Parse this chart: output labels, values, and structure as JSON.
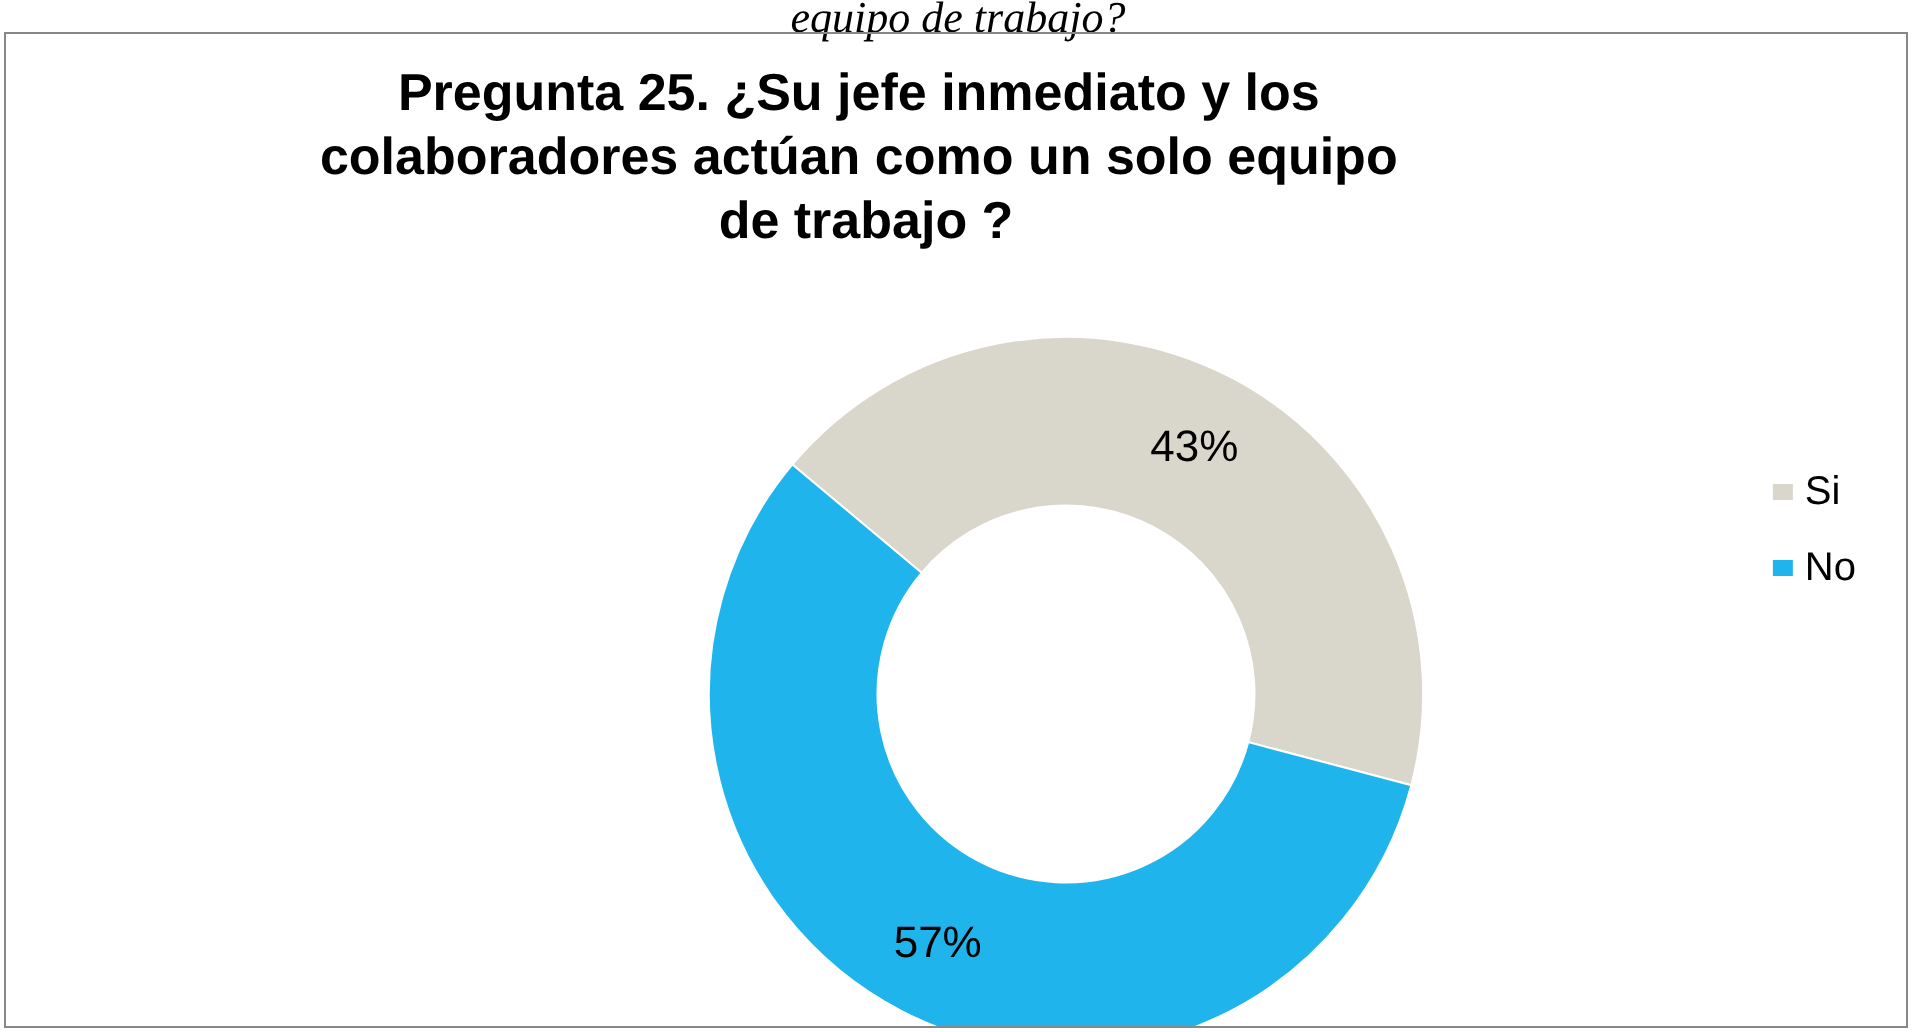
{
  "chart_data": {
    "type": "donut",
    "title": "Pregunta 25. ¿Su jefe inmediato y los colaboradores actúan como un solo equipo de trabajo ?",
    "annotations": [
      "equipo de trabajo?"
    ],
    "categories": [
      "Si",
      "No"
    ],
    "values": [
      43,
      57
    ],
    "colors": [
      "#d9d6cc",
      "#1fb4ec"
    ],
    "value_labels": [
      "43%",
      "57%"
    ],
    "legend": "right"
  }
}
